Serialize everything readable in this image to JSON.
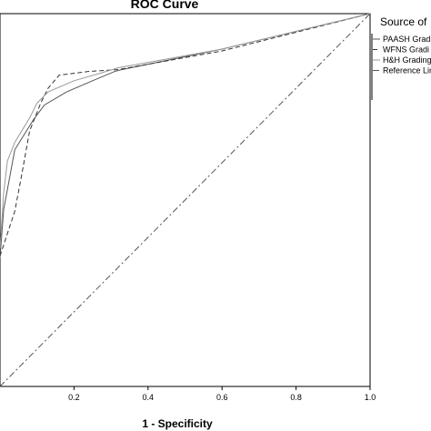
{
  "chart_data": {
    "type": "line",
    "title": "ROC Curve",
    "xlabel": "1 - Specificity",
    "ylabel": "",
    "xlim": [
      0,
      1
    ],
    "ylim": [
      0,
      1
    ],
    "x_ticks": [
      "0.2",
      "0.4",
      "0.6",
      "0.8",
      "1.0"
    ],
    "x_tick_values": [
      0.2,
      0.4,
      0.6,
      0.8,
      1.0
    ],
    "grid": false,
    "legend": {
      "title": "Source of",
      "placement": "right",
      "entries": [
        "PAASH Gradi",
        "WFNS Gradi",
        "H&H Grading",
        "Reference Lin"
      ]
    },
    "series": [
      {
        "name": "PAASH Gradi",
        "style": "solid",
        "color": "#555555",
        "x": [
          0.0,
          0.01,
          0.04,
          0.09,
          0.12,
          0.18,
          0.25,
          0.31,
          0.33,
          0.6,
          1.0
        ],
        "y": [
          0.345,
          0.475,
          0.635,
          0.715,
          0.755,
          0.79,
          0.82,
          0.845,
          0.85,
          0.905,
          1.0
        ]
      },
      {
        "name": "WFNS Gradi",
        "style": "dashed",
        "color": "#333333",
        "x": [
          0.0,
          0.04,
          0.06,
          0.08,
          0.11,
          0.13,
          0.16,
          0.24,
          0.32,
          0.6,
          1.0
        ],
        "y": [
          0.35,
          0.47,
          0.575,
          0.685,
          0.76,
          0.8,
          0.835,
          0.845,
          0.85,
          0.9,
          1.0
        ]
      },
      {
        "name": "H&H Grading",
        "style": "solid",
        "color": "#999999",
        "x": [
          0.0,
          0.01,
          0.02,
          0.04,
          0.08,
          0.1,
          0.13,
          0.2,
          0.27,
          0.32,
          0.6,
          1.0
        ],
        "y": [
          0.37,
          0.52,
          0.605,
          0.655,
          0.72,
          0.76,
          0.79,
          0.82,
          0.84,
          0.855,
          0.905,
          1.0
        ]
      },
      {
        "name": "Reference Lin",
        "style": "dashdot",
        "color": "#555555",
        "x": [
          0.0,
          1.0
        ],
        "y": [
          0.0,
          1.0
        ]
      }
    ]
  }
}
